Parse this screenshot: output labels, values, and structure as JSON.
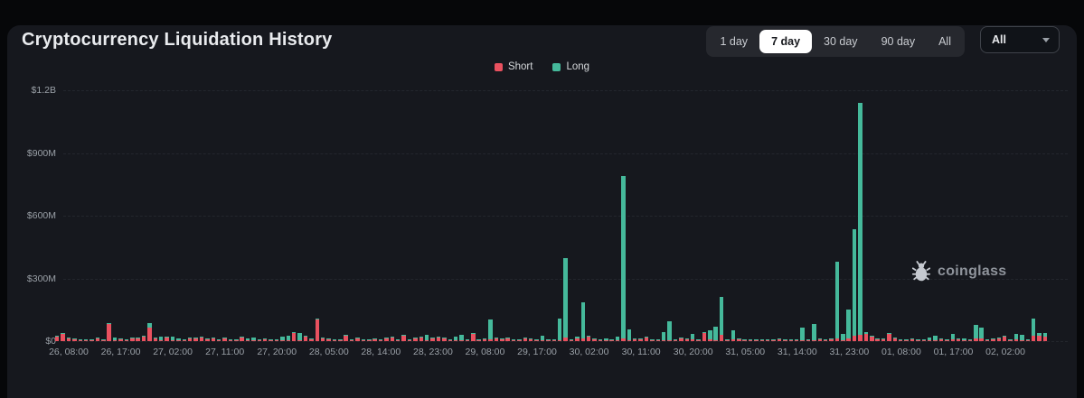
{
  "header": {
    "title": "Cryptocurrency Liquidation History"
  },
  "toolbar": {
    "range_buttons": [
      {
        "label": "1 day",
        "selected": false
      },
      {
        "label": "7 day",
        "selected": true
      },
      {
        "label": "30 day",
        "selected": false
      },
      {
        "label": "90 day",
        "selected": false
      },
      {
        "label": "All",
        "selected": false
      }
    ],
    "dropdown": {
      "value": "All",
      "icon": "caret-down-icon"
    }
  },
  "legend": [
    {
      "label": "Short",
      "color": "#e9515f"
    },
    {
      "label": "Long",
      "color": "#45b99b"
    }
  ],
  "watermark": {
    "icon": "coinglass-bug-icon",
    "text": "coinglass"
  },
  "colors": {
    "page_bg": "#060709",
    "card_bg": "#16181e",
    "grid": "#23262d",
    "axis_text": "#9aa0a7",
    "short": "#e9515f",
    "long": "#45b99b",
    "selected_button_bg": "#ffffff"
  },
  "chart_data": {
    "type": "bar",
    "stacked": true,
    "title": "Cryptocurrency Liquidation History",
    "unit": "million USD",
    "ylim": [
      0,
      1200
    ],
    "grid": "dashed-horizontal",
    "legend_position": "top-center",
    "y_ticks": [
      {
        "label": "$0",
        "value": 0
      },
      {
        "label": "$300M",
        "value": 300
      },
      {
        "label": "$600M",
        "value": 600
      },
      {
        "label": "$900M",
        "value": 900
      },
      {
        "label": "$1.2B",
        "value": 1200
      }
    ],
    "x_labels": [
      {
        "label": "26, 08:00",
        "bar_index": 2
      },
      {
        "label": "26, 17:00",
        "bar_index": 11
      },
      {
        "label": "27, 02:00",
        "bar_index": 20
      },
      {
        "label": "27, 11:00",
        "bar_index": 29
      },
      {
        "label": "27, 20:00",
        "bar_index": 38
      },
      {
        "label": "28, 05:00",
        "bar_index": 47
      },
      {
        "label": "28, 14:00",
        "bar_index": 56
      },
      {
        "label": "28, 23:00",
        "bar_index": 65
      },
      {
        "label": "29, 08:00",
        "bar_index": 74
      },
      {
        "label": "29, 17:00",
        "bar_index": 83
      },
      {
        "label": "30, 02:00",
        "bar_index": 92
      },
      {
        "label": "30, 11:00",
        "bar_index": 101
      },
      {
        "label": "30, 20:00",
        "bar_index": 110
      },
      {
        "label": "31, 05:00",
        "bar_index": 119
      },
      {
        "label": "31, 14:00",
        "bar_index": 128
      },
      {
        "label": "31, 23:00",
        "bar_index": 137
      },
      {
        "label": "01, 08:00",
        "bar_index": 146
      },
      {
        "label": "01, 17:00",
        "bar_index": 155
      },
      {
        "label": "02, 02:00",
        "bar_index": 164
      }
    ],
    "series": [
      {
        "name": "Short",
        "color": "#e9515f",
        "values": [
          20,
          35,
          12,
          8,
          6,
          5,
          4,
          13,
          5,
          80,
          4,
          8,
          4,
          12,
          12,
          20,
          65,
          14,
          6,
          17,
          5,
          6,
          4,
          12,
          14,
          17,
          8,
          12,
          4,
          14,
          5,
          6,
          17,
          4,
          3,
          4,
          10,
          4,
          5,
          4,
          5,
          38,
          6,
          20,
          8,
          105,
          12,
          8,
          4,
          6,
          26,
          5,
          14,
          4,
          3,
          10,
          5,
          13,
          16,
          5,
          24,
          6,
          13,
          16,
          5,
          13,
          16,
          13,
          5,
          4,
          5,
          5,
          35,
          6,
          8,
          8,
          12,
          10,
          12,
          6,
          5,
          14,
          8,
          5,
          4,
          4,
          3,
          6,
          18,
          5,
          14,
          12,
          20,
          8,
          4,
          3,
          4,
          3,
          13,
          4,
          10,
          10,
          17,
          4,
          6,
          4,
          5,
          4,
          12,
          8,
          8,
          5,
          40,
          10,
          5,
          30,
          4,
          10,
          10,
          6,
          4,
          5,
          3,
          6,
          4,
          8,
          3,
          5,
          4,
          5,
          4,
          6,
          8,
          5,
          8,
          12,
          6,
          15,
          25,
          30,
          35,
          22,
          10,
          10,
          35,
          12,
          6,
          4,
          8,
          4,
          6,
          4,
          4,
          8,
          4,
          10,
          8,
          4,
          4,
          14,
          12,
          5,
          8,
          12,
          20,
          5,
          8,
          4,
          4,
          26,
          28,
          22
        ]
      },
      {
        "name": "Long",
        "color": "#45b99b",
        "values": [
          2,
          3,
          2,
          2,
          3,
          2,
          2,
          2,
          2,
          6,
          15,
          3,
          2,
          2,
          2,
          3,
          20,
          2,
          14,
          2,
          18,
          5,
          2,
          2,
          2,
          2,
          2,
          3,
          2,
          2,
          2,
          3,
          3,
          8,
          14,
          2,
          2,
          2,
          3,
          16,
          20,
          4,
          34,
          3,
          2,
          5,
          2,
          2,
          2,
          2,
          3,
          2,
          2,
          2,
          2,
          2,
          2,
          2,
          3,
          2,
          3,
          2,
          2,
          2,
          24,
          2,
          2,
          2,
          2,
          18,
          24,
          3,
          4,
          3,
          4,
          95,
          3,
          2,
          2,
          2,
          2,
          2,
          2,
          3,
          22,
          3,
          4,
          100,
          380,
          4,
          6,
          175,
          6,
          3,
          3,
          10,
          3,
          17,
          775,
          50,
          3,
          3,
          3,
          3,
          3,
          40,
          92,
          3,
          5,
          3,
          28,
          3,
          4,
          40,
          62,
          180,
          3,
          42,
          3,
          3,
          2,
          3,
          2,
          2,
          3,
          2,
          2,
          3,
          4,
          58,
          3,
          75,
          3,
          4,
          6,
          370,
          28,
          135,
          510,
          1110,
          8,
          4,
          3,
          3,
          4,
          3,
          3,
          3,
          3,
          4,
          4,
          14,
          20,
          3,
          3,
          25,
          4,
          10,
          3,
          62,
          55,
          4,
          3,
          3,
          8,
          4,
          25,
          28,
          6,
          80,
          12,
          16
        ]
      }
    ]
  }
}
